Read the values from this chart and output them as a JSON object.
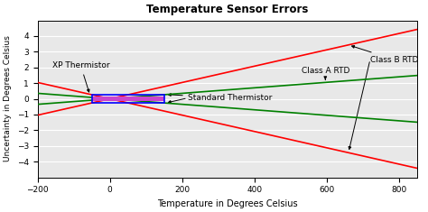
{
  "title": "Temperature Sensor Errors",
  "xlabel": "Temperature in Degrees Celsius",
  "ylabel": "Uncertainty in Degrees Celsius",
  "xlim": [
    -200,
    850
  ],
  "ylim": [
    -5,
    5
  ],
  "xticks": [
    -200,
    0,
    200,
    400,
    600,
    800
  ],
  "yticks": [
    -4,
    -3,
    -2,
    -1,
    0,
    1,
    2,
    3,
    4
  ],
  "class_b_rtd": {
    "slope": 0.0052,
    "color": "red",
    "linewidth": 1.2
  },
  "class_a_rtd": {
    "slope": 0.00175,
    "color": "green",
    "linewidth": 1.2
  },
  "std_thermistor": {
    "x_range": [
      -50,
      150
    ],
    "y_upper": 0.28,
    "y_lower": -0.28,
    "edge_color": "blue",
    "linewidth": 1.2,
    "facecolor": "none"
  },
  "xp_thermistor": {
    "x_range": [
      -50,
      150
    ],
    "y_upper": 0.13,
    "y_lower": -0.13,
    "color": "#cc44cc",
    "linewidth": 2.0
  },
  "background_color": "#e8e8e8",
  "grid_color": "white",
  "figsize": [
    4.74,
    2.35
  ],
  "dpi": 100,
  "annot_fontsize": 6.5,
  "arrowstyle": {
    "color": "black",
    "lw": 0.7,
    "mutation_scale": 5
  }
}
